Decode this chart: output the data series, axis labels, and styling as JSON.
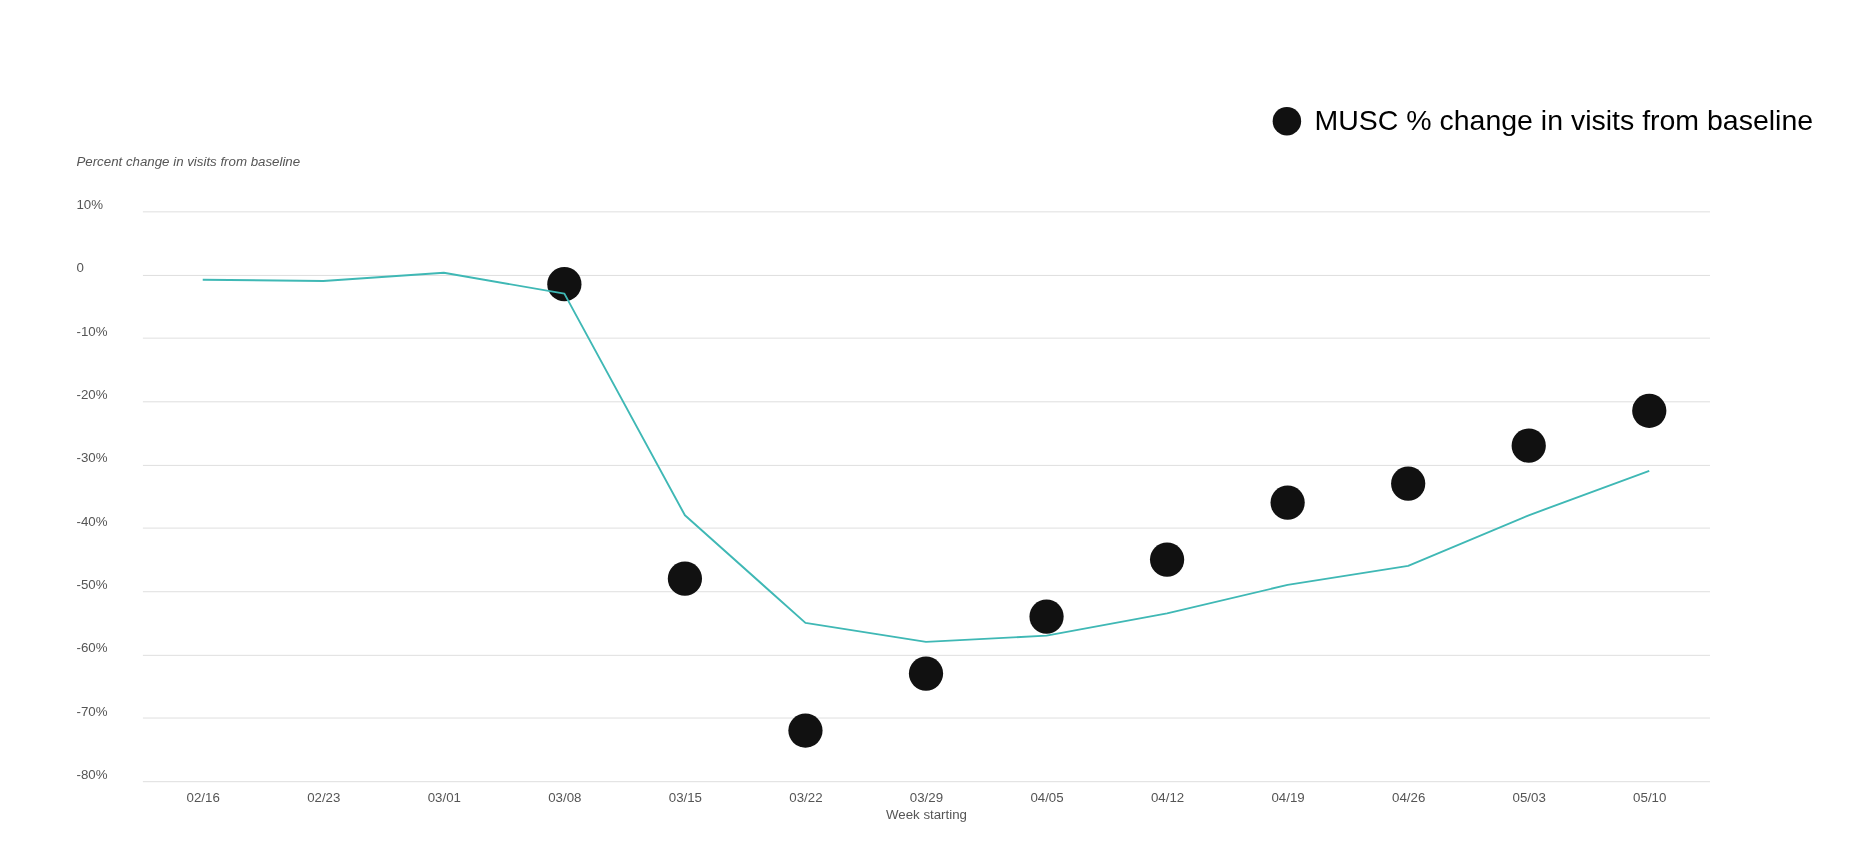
{
  "chart_data": {
    "type": "line",
    "ylabel": "Percent change in visits from baseline",
    "xlabel": "Week starting",
    "categories": [
      "02/16",
      "02/23",
      "03/01",
      "03/08",
      "03/15",
      "03/22",
      "03/29",
      "04/05",
      "04/12",
      "04/19",
      "04/26",
      "05/03",
      "05/10"
    ],
    "series": [
      {
        "color": "#3fb8b5",
        "values": [
          -0.8,
          -1,
          0.3,
          -3,
          -38,
          -55,
          -58,
          -57,
          -53.5,
          -49,
          -46,
          -38,
          -31
        ]
      },
      {
        "type": "scatter",
        "name": "MUSC % change in visits from baseline",
        "color": "#111111",
        "marker": "circle",
        "values": [
          null,
          null,
          null,
          -1.5,
          -48,
          -72,
          -63,
          -54,
          -45,
          -36,
          -33,
          -27,
          -21.5
        ]
      }
    ],
    "ylim": [
      -80,
      10
    ],
    "yticks": [
      {
        "value": 10,
        "label": "10%"
      },
      0,
      {
        "value": -10,
        "label": "-10%"
      },
      {
        "value": -20,
        "label": "-20%"
      },
      {
        "value": -30,
        "label": "-30%"
      },
      {
        "value": -40,
        "label": "-40%"
      },
      {
        "value": -50,
        "label": "-50%"
      },
      {
        "value": -60,
        "label": "-60%"
      },
      {
        "value": -70,
        "label": "-70%"
      },
      {
        "value": -80,
        "label": "-80%"
      }
    ],
    "grid": "y",
    "legend": "top right"
  }
}
